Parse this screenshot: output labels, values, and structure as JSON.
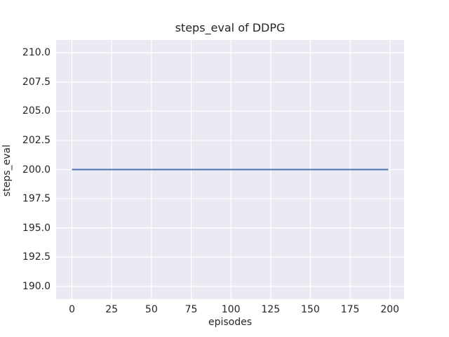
{
  "chart_data": {
    "type": "line",
    "title": "steps_eval of DDPG",
    "xlabel": "episodes",
    "ylabel": "steps_eval",
    "x_tick_values": [
      0,
      25,
      50,
      75,
      100,
      125,
      150,
      175,
      200
    ],
    "x_tick_labels": [
      "0",
      "25",
      "50",
      "75",
      "100",
      "125",
      "150",
      "175",
      "200"
    ],
    "y_tick_values": [
      190,
      192.5,
      195,
      197.5,
      200,
      202.5,
      205,
      207.5,
      210
    ],
    "y_tick_labels": [
      "190.0",
      "192.5",
      "195.0",
      "197.5",
      "200.0",
      "202.5",
      "205.0",
      "207.5",
      "210.0"
    ],
    "xlim": [
      -9.95,
      208.95
    ],
    "ylim": [
      188.9,
      211.1
    ],
    "grid": true,
    "legend": "none",
    "plot_background_color": "#eaeaf2",
    "grid_color": "#ffffff",
    "text_color": "#262626",
    "series": [
      {
        "name": "steps_eval",
        "color": "#4c72b0",
        "x": [
          0,
          199
        ],
        "y": [
          200,
          200
        ]
      }
    ]
  }
}
